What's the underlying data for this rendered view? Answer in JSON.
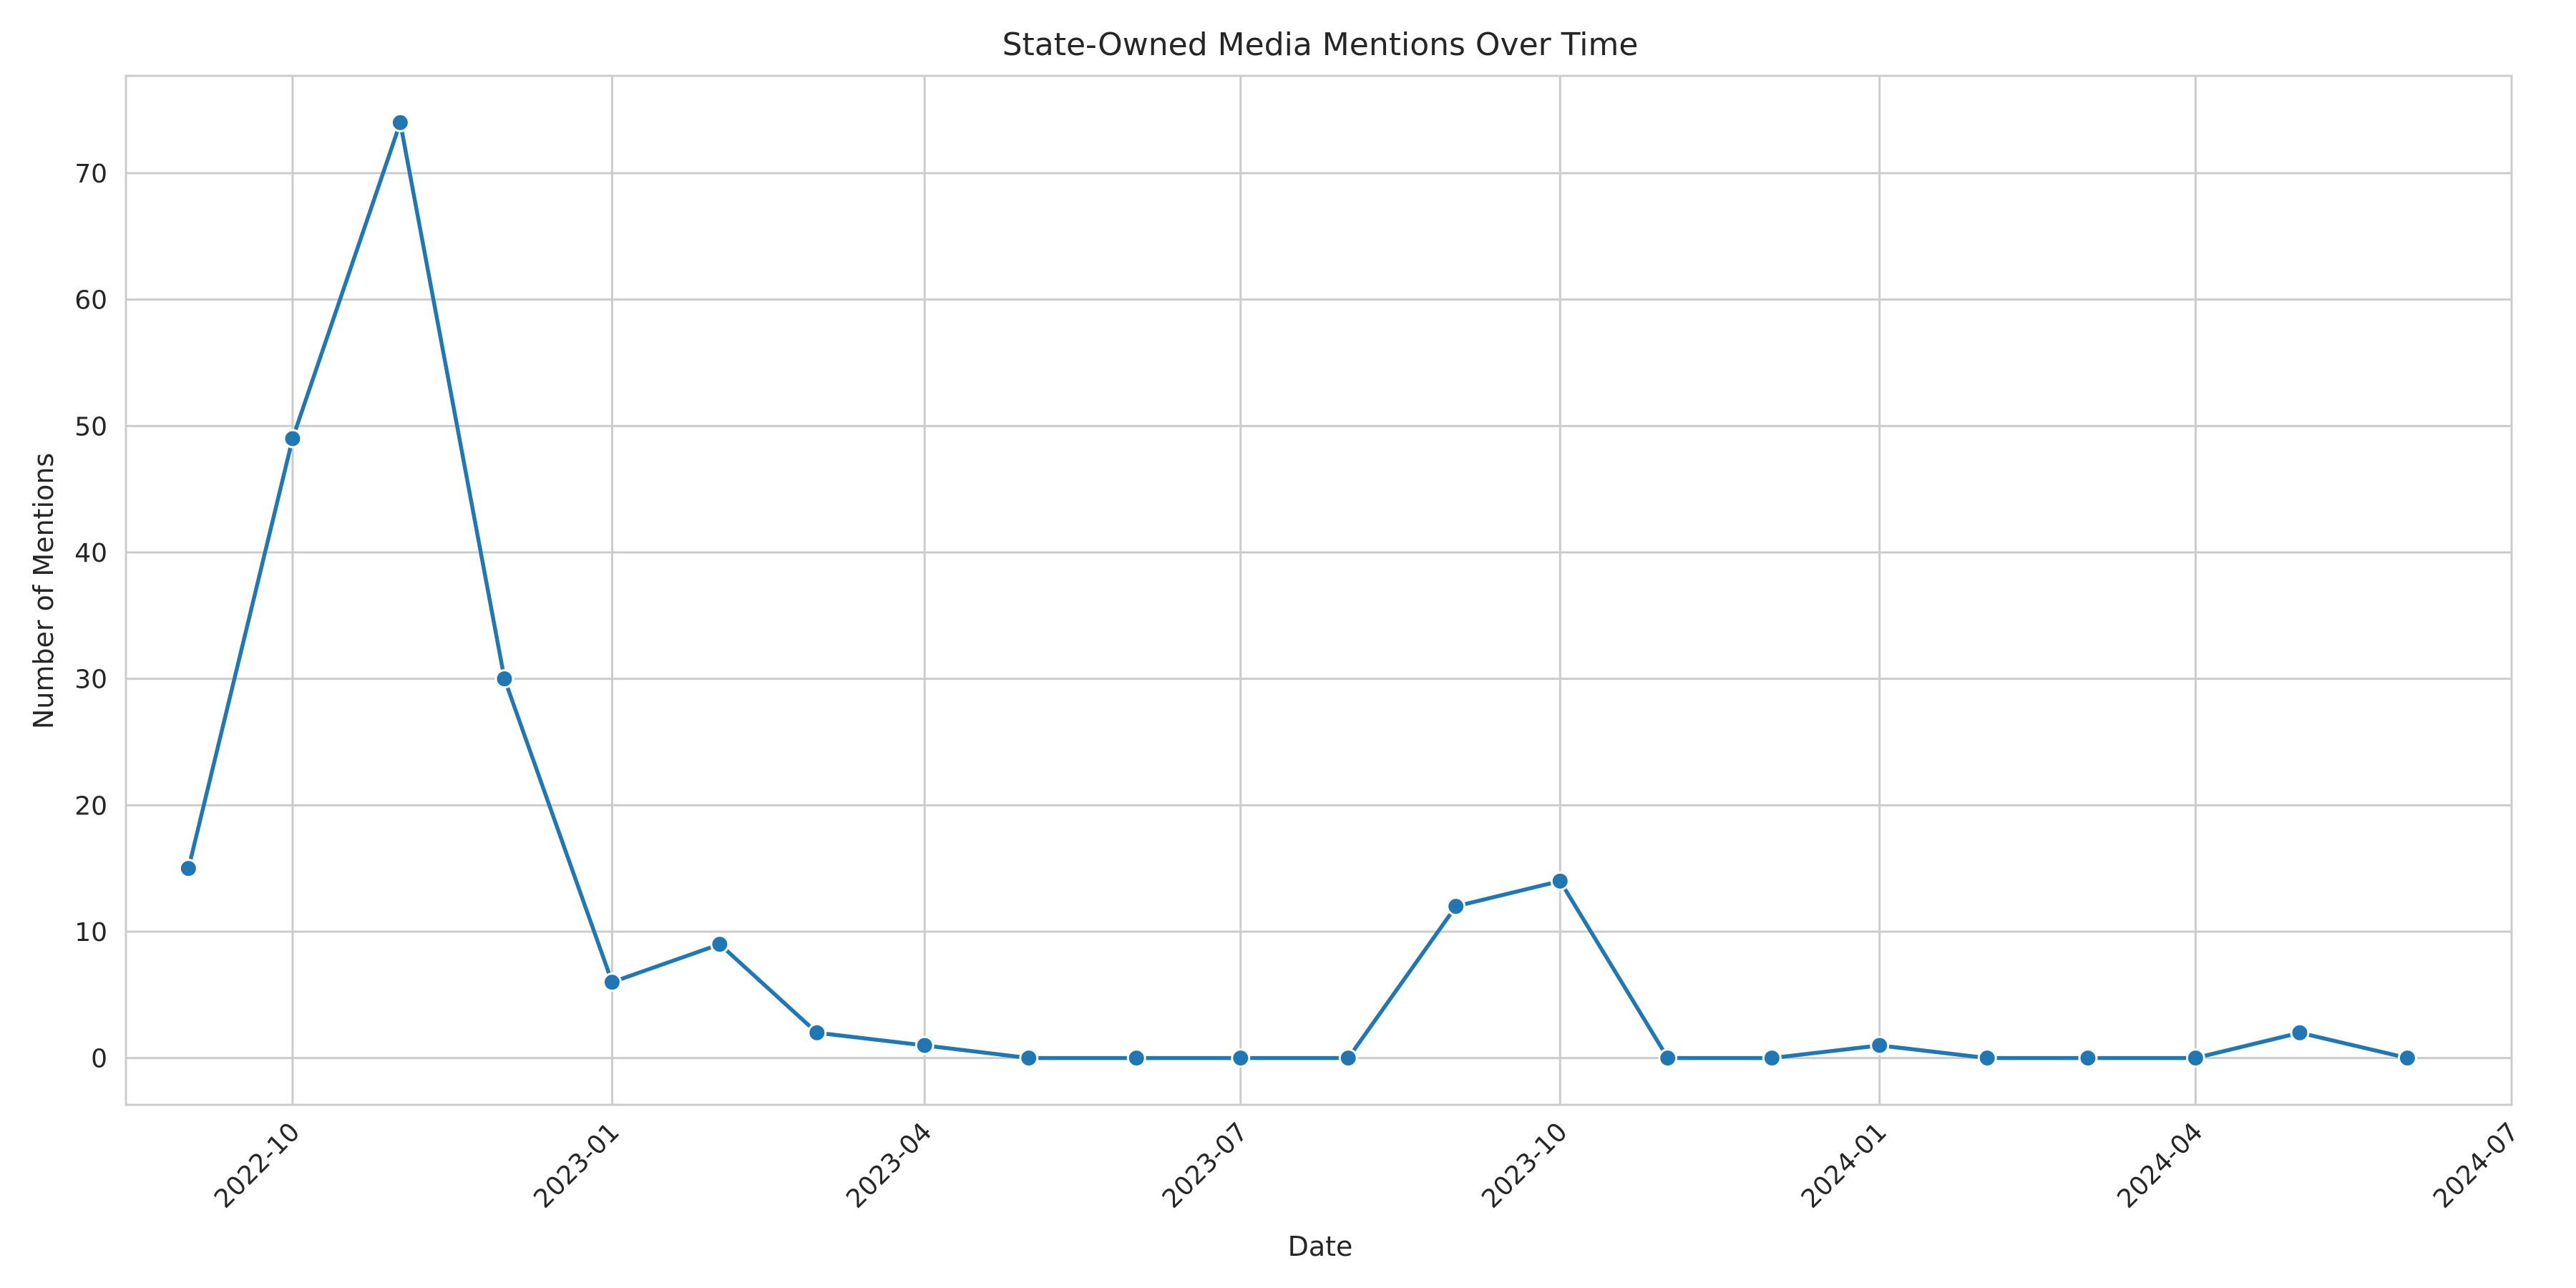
{
  "chart_data": {
    "type": "line",
    "title": "State-Owned Media Mentions Over Time",
    "xlabel": "Date",
    "ylabel": "Number of Mentions",
    "x_type": "date",
    "xlim": [
      "2022-08-14",
      "2024-07-01"
    ],
    "ylim": [
      -3.7,
      77.7
    ],
    "grid": true,
    "x_ticks": [
      "2022-10",
      "2023-01",
      "2023-04",
      "2023-07",
      "2023-10",
      "2024-01",
      "2024-04",
      "2024-07"
    ],
    "y_ticks": [
      0,
      10,
      20,
      30,
      40,
      50,
      60,
      70
    ],
    "series": [
      {
        "color": "#1f77b4",
        "marker": "circle",
        "x": [
          "2022-09-01",
          "2022-10-01",
          "2022-11-01",
          "2022-12-01",
          "2023-01-01",
          "2023-02-01",
          "2023-03-01",
          "2023-04-01",
          "2023-05-01",
          "2023-06-01",
          "2023-07-01",
          "2023-08-01",
          "2023-09-01",
          "2023-10-01",
          "2023-11-01",
          "2023-12-01",
          "2024-01-01",
          "2024-02-01",
          "2024-03-01",
          "2024-04-01",
          "2024-05-01",
          "2024-06-01"
        ],
        "values": [
          15,
          49,
          74,
          30,
          6,
          9,
          2,
          1,
          0,
          0,
          0,
          0,
          12,
          14,
          0,
          0,
          1,
          0,
          0,
          0,
          2,
          0
        ]
      }
    ]
  }
}
